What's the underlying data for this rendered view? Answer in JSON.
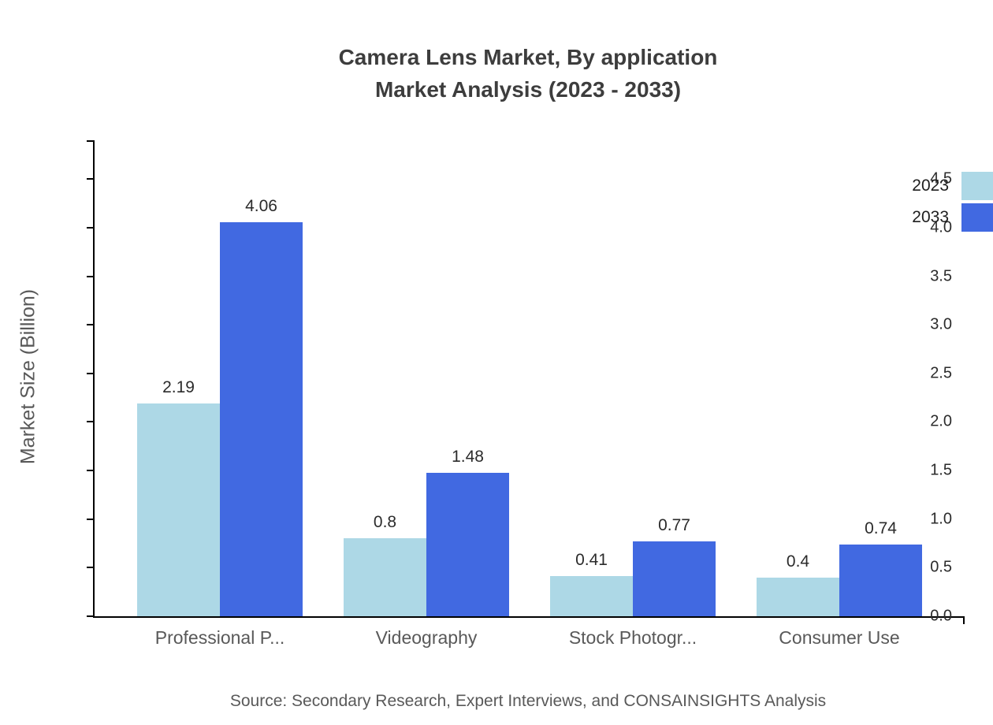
{
  "title": {
    "line1": "Camera Lens Market, By application",
    "line2": "Market Analysis (2023 - 2033)"
  },
  "chart_data": {
    "type": "bar",
    "categories": [
      "Professional P...",
      "Videography",
      "Stock Photogr...",
      "Consumer Use"
    ],
    "series": [
      {
        "name": "2023",
        "color": "#ADD8E6",
        "values": [
          2.19,
          0.8,
          0.41,
          0.4
        ]
      },
      {
        "name": "2033",
        "color": "#4169E1",
        "values": [
          4.06,
          1.48,
          0.77,
          0.74
        ]
      }
    ],
    "value_labels": {
      "2023": [
        "2.19",
        "0.8",
        "0.41",
        "0.4"
      ],
      "2033": [
        "4.06",
        "1.48",
        "0.77",
        "0.74"
      ]
    },
    "xlabel": "",
    "ylabel": "Market Size (Billion)",
    "yticks": [
      0.0,
      0.5,
      1.0,
      1.5,
      2.0,
      2.5,
      3.0,
      3.5,
      4.0,
      4.5
    ],
    "ylim": [
      0,
      4.9
    ],
    "grid": false,
    "legend_position": "top-right"
  },
  "source": "Source: Secondary Research, Expert Interviews, and CONSAINSIGHTS Analysis"
}
